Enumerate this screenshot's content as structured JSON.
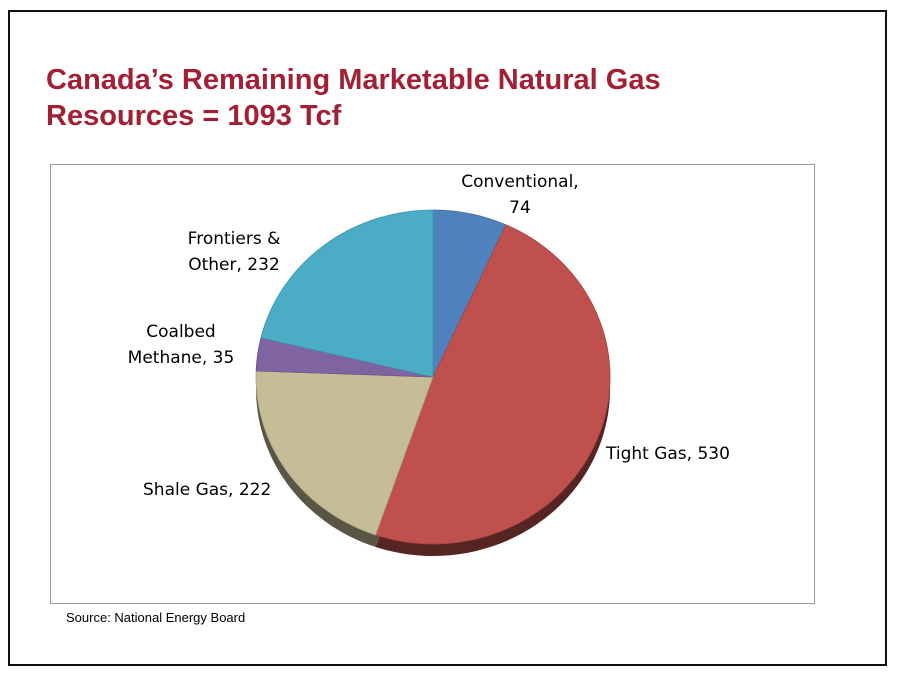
{
  "title": {
    "line1": "Canada’s Remaining Marketable Natural Gas",
    "line2": "Resources = 1093 Tcf"
  },
  "source": "Source: National Energy Board",
  "colors": {
    "title": "#a31f34",
    "conventional": "#4f81bd",
    "tight_gas": "#c0504d",
    "shale_gas": "#c4bd97",
    "coalbed_methane": "#8064a2",
    "frontiers_other": "#4bacc6"
  },
  "chart_data": {
    "type": "pie",
    "title": "Canada’s Remaining Marketable Natural Gas Resources = 1093 Tcf",
    "legend": "none",
    "slices": [
      {
        "label": "Conventional",
        "value": 74,
        "label_lines": [
          "Conventional,",
          "74"
        ],
        "color": "#4f81bd"
      },
      {
        "label": "Tight Gas",
        "value": 530,
        "label_lines": [
          "Tight Gas, 530"
        ],
        "color": "#c0504d"
      },
      {
        "label": "Shale Gas",
        "value": 222,
        "label_lines": [
          "Shale Gas, 222"
        ],
        "color": "#c4bd97"
      },
      {
        "label": "Coalbed Methane",
        "value": 35,
        "label_lines": [
          "Coalbed",
          "Methane, 35"
        ],
        "color": "#8064a2"
      },
      {
        "label": "Frontiers & Other",
        "value": 232,
        "label_lines": [
          "Frontiers &",
          "Other, 232"
        ],
        "color": "#4bacc6"
      }
    ]
  }
}
